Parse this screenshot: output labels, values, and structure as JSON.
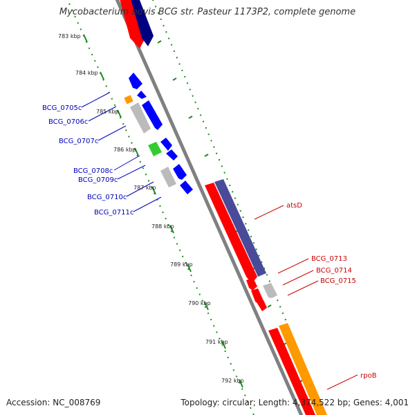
{
  "title": "Mycobacterium bovis BCG str. Pasteur 1173P2, complete genome",
  "footer": {
    "accession": "Accession: NC_008769",
    "topology": "Topology: circular; Length: 4,374,522 bp; Genes: 4,001"
  },
  "ticks": [
    "783 kbp",
    "784 kbp",
    "785 kbp",
    "786 kbp",
    "787 kbp",
    "788 kbp",
    "789 kbp",
    "790 kbp",
    "791 kbp",
    "792 kbp"
  ],
  "left_genes": [
    "BCG_0705c",
    "BCG_0706c",
    "BCG_0707c",
    "BCG_0708c",
    "BCG_0709c",
    "BCG_0710c",
    "BCG_0711c"
  ],
  "right_genes": [
    "atsD",
    "BCG_0713",
    "BCG_0714",
    "BCG_0715",
    "rpoB"
  ],
  "colors": {
    "backbone": "#808080",
    "tick_green": "#1a8a1a",
    "left_label": "#0000bb",
    "right_label": "#cc0000",
    "red": "#ff0000",
    "navy": "#000080",
    "slate": "#4a4a9a",
    "blue": "#0000ff",
    "orange": "#ff9900",
    "gray": "#bbbbbb",
    "green": "#33cc33"
  }
}
